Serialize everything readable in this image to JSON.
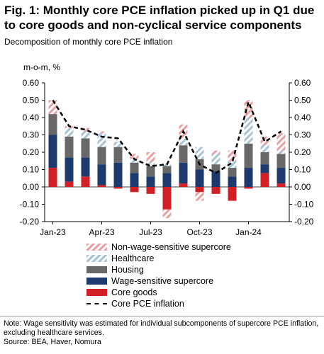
{
  "header": {
    "title": "Fig. 1: Monthly core PCE inflation picked up in Q1 due to core goods and non-cyclical service components",
    "subtitle": "Decomposition of monthly core PCE inflation",
    "unit_label": "m-o-m, %"
  },
  "footer": {
    "note": "Note: Wage sensitivity was estimated for individual subcomponents of supercore PCE inflation, excluding healthcare services.",
    "source": "Source: BEA, Haver, Nomura"
  },
  "colors": {
    "non_wage": "#e8a0a0",
    "healthcare": "#a7c3d4",
    "housing": "#686868",
    "wage": "#1d3a6e",
    "core_goods": "#d11f26",
    "core_pce": "#000000"
  },
  "chart_data": {
    "type": "bar",
    "stacked": true,
    "categories": [
      "Jan-23",
      "Feb-23",
      "Mar-23",
      "Apr-23",
      "May-23",
      "Jun-23",
      "Jul-23",
      "Aug-23",
      "Sep-23",
      "Oct-23",
      "Nov-23",
      "Dec-23",
      "Jan-24",
      "Feb-24",
      "Mar-24"
    ],
    "x_tick_labels": [
      "Jan-23",
      "Apr-23",
      "Jul-23",
      "Oct-23",
      "Jan-24"
    ],
    "ylim": [
      -0.2,
      0.6
    ],
    "y_ticks": [
      "0.60",
      "0.50",
      "0.40",
      "0.30",
      "0.20",
      "0.10",
      "0.00",
      "-0.10",
      "-0.20"
    ],
    "y_ticks_right": [
      "0.60",
      "0.50",
      "0.40",
      "0.30",
      "0.20",
      "0.10",
      "0.00",
      "-0.10",
      "-0.20"
    ],
    "xlabel": "",
    "ylabel": "m-o-m, %",
    "legend_position": "bottom",
    "series": [
      {
        "name": "Non-wage-sensitive supercore",
        "values": [
          0.08,
          0.01,
          0.02,
          0.01,
          0.0,
          0.03,
          0.06,
          -0.05,
          0.08,
          -0.05,
          0.02,
          0.06,
          0.1,
          0.05,
          0.1
        ]
      },
      {
        "name": "Healthcare",
        "values": [
          0.0,
          0.05,
          0.04,
          0.08,
          0.03,
          0.02,
          0.02,
          0.02,
          0.04,
          0.07,
          0.06,
          0.04,
          0.15,
          0.04,
          0.02
        ]
      },
      {
        "name": "Housing",
        "values": [
          0.12,
          0.12,
          0.11,
          0.1,
          0.09,
          0.06,
          0.06,
          0.04,
          0.1,
          0.06,
          0.04,
          0.05,
          0.14,
          0.07,
          0.08
        ]
      },
      {
        "name": "Wage-sensitive supercore",
        "values": [
          0.19,
          0.14,
          0.11,
          0.12,
          0.14,
          0.08,
          0.06,
          0.08,
          0.12,
          0.1,
          0.09,
          0.06,
          0.11,
          0.05,
          0.09
        ]
      },
      {
        "name": "Core goods",
        "values": [
          0.11,
          0.03,
          0.06,
          0.01,
          -0.01,
          -0.03,
          -0.04,
          -0.13,
          0.02,
          -0.03,
          -0.04,
          -0.08,
          -0.01,
          0.08,
          0.02
        ]
      }
    ],
    "line": {
      "name": "Core PCE inflation",
      "values": [
        0.5,
        0.35,
        0.33,
        0.29,
        0.28,
        0.16,
        0.12,
        0.13,
        0.32,
        0.13,
        0.08,
        0.14,
        0.49,
        0.26,
        0.32
      ]
    }
  }
}
